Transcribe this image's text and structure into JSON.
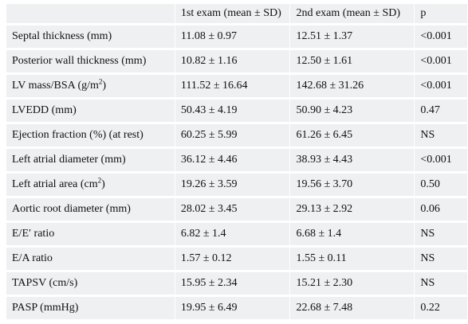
{
  "table": {
    "headers": [
      "",
      "1st exam (mean ± SD)",
      "2nd exam (mean ± SD)",
      "p"
    ],
    "rows": [
      {
        "label": "Septal thickness (mm)",
        "first": "11.08 ± 0.97",
        "second": "12.51 ± 1.37",
        "p": "<0.001"
      },
      {
        "label": "Posterior wall thickness (mm)",
        "first": "10.82 ± 1.16",
        "second": "12.50 ± 1.61",
        "p": "<0.001"
      },
      {
        "label": "LV mass/BSA (g/m",
        "label_sup": "2",
        "label_after": ")",
        "first": "111.52 ± 16.64",
        "second": "142.68 ± 31.26",
        "p": "<0.001"
      },
      {
        "label": "LVEDD (mm)",
        "first": "50.43 ± 4.19",
        "second": "50.90 ± 4.23",
        "p": "0.47"
      },
      {
        "label": "Ejection fraction (%) (at rest)",
        "first": "60.25 ± 5.99",
        "second": "61.26 ± 6.45",
        "p": "NS"
      },
      {
        "label": "Left atrial diameter (mm)",
        "first": "36.12 ± 4.46",
        "second": "38.93 ± 4.43",
        "p": "<0.001"
      },
      {
        "label": "Left atrial area (cm",
        "label_sup": "2",
        "label_after": ")",
        "first": "19.26 ± 3.59",
        "second": "19.56 ± 3.70",
        "p": "0.50"
      },
      {
        "label": "Aortic root diameter (mm)",
        "first": "28.02 ± 3.45",
        "second": "29.13 ± 2.92",
        "p": "0.06"
      },
      {
        "label": "E/E′ ratio",
        "first": "6.82 ± 1.4",
        "second": "6.68 ± 1.4",
        "p": "NS"
      },
      {
        "label": "E/A ratio",
        "first": "1.57 ± 0.12",
        "second": "1.55 ± 0.11",
        "p": "NS"
      },
      {
        "label": "TAPSV (cm/s)",
        "first": "15.95 ± 2.34",
        "second": "15.21 ± 2.30",
        "p": "NS"
      },
      {
        "label": "PASP (mmHg)",
        "first": "19.95 ± 6.49",
        "second": "22.68 ± 7.48",
        "p": "0.22"
      }
    ]
  },
  "colors": {
    "cell_background": "#eef0f1",
    "text": "#111111",
    "grid_lines": "#ffffff"
  }
}
